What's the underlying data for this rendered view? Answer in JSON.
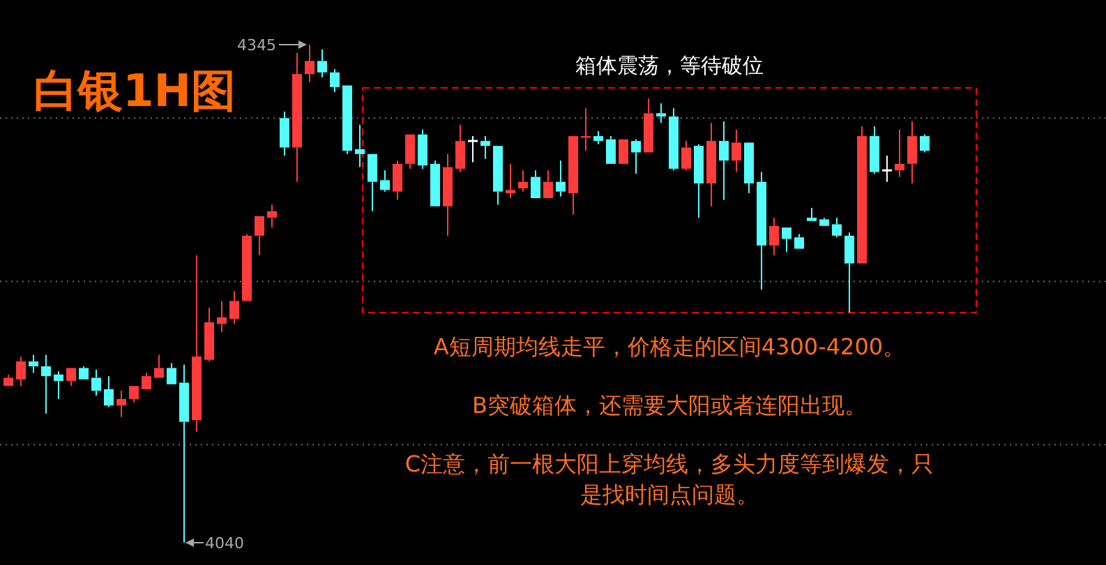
{
  "chart_data": {
    "type": "candlestick",
    "title": "白银1H图",
    "categories": [
      null,
      null,
      null,
      null,
      null,
      null,
      null,
      null,
      null,
      null,
      null,
      null,
      null,
      null,
      null,
      null,
      null,
      null,
      null,
      null,
      null,
      null,
      null,
      null,
      null,
      null,
      null,
      null,
      null,
      null,
      null,
      null,
      null,
      null,
      null,
      null,
      null,
      null,
      null,
      null,
      null,
      null,
      null,
      null,
      null,
      null,
      null,
      null,
      null,
      null,
      null,
      null,
      null,
      null,
      null,
      null,
      null,
      null,
      null,
      null,
      null,
      null,
      null,
      null,
      null,
      null,
      null,
      null,
      null,
      null,
      null,
      null,
      null,
      null
    ],
    "ohlc": [
      [
        4136,
        4143,
        4136,
        4141
      ],
      [
        4140,
        4154,
        4136,
        4151
      ],
      [
        4151,
        4155,
        4144,
        4148
      ],
      [
        4148,
        4155,
        4119,
        4142
      ],
      [
        4143,
        4145,
        4128,
        4139
      ],
      [
        4139,
        4147,
        4136,
        4147
      ],
      [
        4147,
        4148,
        4140,
        4140
      ],
      [
        4141,
        4146,
        4130,
        4133
      ],
      [
        4134,
        4142,
        4123,
        4124
      ],
      [
        4124,
        4133,
        4117,
        4128
      ],
      [
        4128,
        4136,
        4126,
        4136
      ],
      [
        4134,
        4144,
        4134,
        4142
      ],
      [
        4141,
        4155,
        4141,
        4147
      ],
      [
        4147,
        4150,
        4137,
        4137
      ],
      [
        4138,
        4149,
        4040,
        4114
      ],
      [
        4115,
        4216,
        4108,
        4154
      ],
      [
        4152,
        4184,
        4151,
        4175
      ],
      [
        4174,
        4188,
        4169,
        4178
      ],
      [
        4177,
        4194,
        4174,
        4188
      ],
      [
        4188,
        4229,
        4188,
        4228
      ],
      [
        4228,
        4240,
        4216,
        4240
      ],
      [
        4239,
        4247,
        4233,
        4243
      ],
      [
        4300,
        4304,
        4277,
        4282
      ],
      [
        4282,
        4340,
        4261,
        4327
      ],
      [
        4327,
        4345,
        4322,
        4335
      ],
      [
        4335,
        4342,
        4325,
        4328
      ],
      [
        4328,
        4330,
        4316,
        4319
      ],
      [
        4320,
        4320,
        4278,
        4280
      ],
      [
        4281,
        4296,
        4270,
        4278
      ],
      [
        4278,
        4278,
        4243,
        4261
      ],
      [
        4262,
        4268,
        4255,
        4256
      ],
      [
        4255,
        4274,
        4250,
        4272
      ],
      [
        4272,
        4290,
        4269,
        4290
      ],
      [
        4290,
        4293,
        4269,
        4271
      ],
      [
        4272,
        4274,
        4246,
        4246
      ],
      [
        4246,
        4278,
        4228,
        4270
      ],
      [
        4269,
        4296,
        4267,
        4286
      ],
      [
        4286,
        4289,
        4273,
        4286
      ],
      [
        4286,
        4289,
        4275,
        4283
      ],
      [
        4283,
        4283,
        4247,
        4255
      ],
      [
        4254,
        4272,
        4251,
        4256
      ],
      [
        4257,
        4268,
        4255,
        4261
      ],
      [
        4264,
        4268,
        4251,
        4251
      ],
      [
        4251,
        4268,
        4251,
        4261
      ],
      [
        4261,
        4274,
        4252,
        4255
      ],
      [
        4254,
        4289,
        4241,
        4289
      ],
      [
        4288,
        4306,
        4280,
        4289
      ],
      [
        4289,
        4292,
        4284,
        4286
      ],
      [
        4287,
        4289,
        4272,
        4272
      ],
      [
        4272,
        4287,
        4272,
        4287
      ],
      [
        4286,
        4287,
        4266,
        4279
      ],
      [
        4279,
        4312,
        4279,
        4303
      ],
      [
        4303,
        4309,
        4297,
        4301
      ],
      [
        4301,
        4306,
        4268,
        4269
      ],
      [
        4269,
        4286,
        4268,
        4282
      ],
      [
        4283,
        4284,
        4239,
        4260
      ],
      [
        4260,
        4297,
        4246,
        4286
      ],
      [
        4286,
        4298,
        4250,
        4274
      ],
      [
        4274,
        4293,
        4267,
        4285
      ],
      [
        4285,
        4285,
        4254,
        4260
      ],
      [
        4261,
        4267,
        4195,
        4222
      ],
      [
        4222,
        4239,
        4216,
        4234
      ],
      [
        4233,
        4233,
        4218,
        4226
      ],
      [
        4227,
        4229,
        4220,
        4220
      ],
      [
        4239,
        4245,
        4237,
        4237
      ],
      [
        4238,
        4239,
        4234,
        4234
      ],
      [
        4235,
        4239,
        4227,
        4228
      ],
      [
        4228,
        4230,
        4181,
        4211
      ],
      [
        4211,
        4295,
        4211,
        4289
      ],
      [
        4289,
        4295,
        4266,
        4267
      ],
      [
        4268,
        4277,
        4261,
        4268
      ],
      [
        4268,
        4293,
        4264,
        4272
      ],
      [
        4272,
        4298,
        4260,
        4289
      ],
      [
        4289,
        4290,
        4279,
        4280
      ]
    ],
    "colors": [
      "#ff3b3b",
      "#ff3b3b",
      "#54fcfc",
      "#54fcfc",
      "#54fcfc",
      "#ff3b3b",
      "#54fcfc",
      "#54fcfc",
      "#54fcfc",
      "#ff3b3b",
      "#ff3b3b",
      "#ff3b3b",
      "#ff3b3b",
      "#54fcfc",
      "#54fcfc",
      "#ff3b3b",
      "#ff3b3b",
      "#ff3b3b",
      "#ff3b3b",
      "#ff3b3b",
      "#ff3b3b",
      "#ff3b3b",
      "#54fcfc",
      "#ff3b3b",
      "#ff3b3b",
      "#54fcfc",
      "#54fcfc",
      "#54fcfc",
      "#54fcfc",
      "#54fcfc",
      "#54fcfc",
      "#ff3b3b",
      "#ff3b3b",
      "#54fcfc",
      "#54fcfc",
      "#ff3b3b",
      "#ff3b3b",
      "#ffffff",
      "#54fcfc",
      "#54fcfc",
      "#ff3b3b",
      "#ff3b3b",
      "#54fcfc",
      "#ff3b3b",
      "#54fcfc",
      "#ff3b3b",
      "#ff3b3b",
      "#54fcfc",
      "#54fcfc",
      "#ff3b3b",
      "#54fcfc",
      "#ff3b3b",
      "#54fcfc",
      "#54fcfc",
      "#ff3b3b",
      "#54fcfc",
      "#ff3b3b",
      "#54fcfc",
      "#ff3b3b",
      "#54fcfc",
      "#54fcfc",
      "#ff3b3b",
      "#54fcfc",
      "#54fcfc",
      "#54fcfc",
      "#54fcfc",
      "#54fcfc",
      "#54fcfc",
      "#ff3b3b",
      "#54fcfc",
      "#ffffff",
      "#ff3b3b",
      "#ff3b3b",
      "#54fcfc"
    ],
    "grid": "y",
    "yticks": [
      {
        "value": 4100,
        "label": null
      },
      {
        "value": 4200,
        "label": null
      },
      {
        "value": 4300,
        "label": null
      }
    ],
    "annotations": [
      "箱体震荡，等待破位",
      "4345",
      "4040",
      "A短周期均线走平，价格走的区间4300-4200。",
      "B突破箱体，还需要大阳或者连阳出现。",
      "C注意，前一根大阳上穿均线，多头力度等到爆发，只是找时间点问题。"
    ]
  }
}
